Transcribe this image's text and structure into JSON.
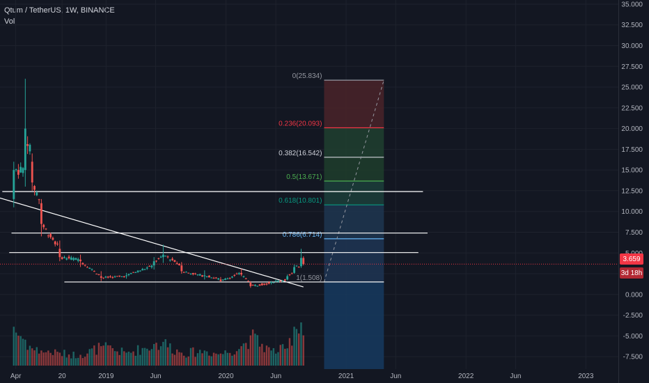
{
  "legend": {
    "symbol": "Qtum / TetherUS, 1W, BINANCE",
    "volume_label": "Vol"
  },
  "price_tag": {
    "current": "3.659",
    "countdown": "3d 18h"
  },
  "colors": {
    "background": "#131722",
    "up": "#26a69a",
    "down": "#ef5350",
    "text": "#d1d4dc",
    "axis_text": "#b2b5be",
    "grid": "#1e222d",
    "trendline": "#ffffff",
    "current_price_line": "#f23645"
  },
  "chart_data": {
    "type": "candlestick",
    "title": "Qtum / TetherUS, 1W, BINANCE",
    "interval": "1W",
    "exchange": "BINANCE",
    "y_axis": {
      "position": "right",
      "range": [
        -9.0,
        35.5
      ],
      "ticks": [
        "35.000",
        "32.500",
        "30.000",
        "27.500",
        "25.000",
        "22.500",
        "20.000",
        "17.500",
        "15.000",
        "12.500",
        "10.000",
        "7.500",
        "5.000",
        "2.500",
        "0.000",
        "-2.500",
        "-5.000",
        "-7.500"
      ]
    },
    "x_axis": {
      "start": "2018-02-12",
      "end": "2023-04-10",
      "ticks": [
        {
          "label": "Apr",
          "date": "2018-04-01"
        },
        {
          "label": "20",
          "date": "2018-08-20"
        },
        {
          "label": "2019",
          "date": "2019-01-01"
        },
        {
          "label": "Jun",
          "date": "2019-06-01"
        },
        {
          "label": "2020",
          "date": "2020-01-01"
        },
        {
          "label": "Jun",
          "date": "2020-06-01"
        },
        {
          "label": "2021",
          "date": "2021-01-01"
        },
        {
          "label": "Jun",
          "date": "2021-06-01"
        },
        {
          "label": "2022",
          "date": "2022-01-01"
        },
        {
          "label": "Jun",
          "date": "2022-06-01"
        },
        {
          "label": "2023",
          "date": "2023-01-01"
        }
      ]
    },
    "grid": true,
    "current_price": 3.659,
    "anchors": [
      {
        "date": "2018-03-26",
        "open": 11.5,
        "high": 16.0,
        "low": 10.5,
        "close": 15.0,
        "volume": 900
      },
      {
        "date": "2018-04-30",
        "open": 15.0,
        "high": 26.0,
        "low": 13.0,
        "close": 20.0,
        "volume": 600
      },
      {
        "date": "2018-05-21",
        "open": 16.0,
        "high": 17.0,
        "low": 12.5,
        "close": 13.5,
        "volume": 400
      },
      {
        "date": "2018-06-18",
        "open": 11.0,
        "high": 11.5,
        "low": 7.0,
        "close": 8.5,
        "volume": 350
      },
      {
        "date": "2018-08-13",
        "open": 5.5,
        "high": 6.5,
        "low": 4.0,
        "close": 4.5,
        "volume": 300
      },
      {
        "date": "2018-10-15",
        "open": 4.2,
        "high": 4.8,
        "low": 3.3,
        "close": 4.0,
        "volume": 250
      },
      {
        "date": "2018-12-17",
        "open": 2.2,
        "high": 2.8,
        "low": 1.6,
        "close": 2.0,
        "volume": 450
      },
      {
        "date": "2019-03-04",
        "open": 2.2,
        "high": 2.6,
        "low": 1.9,
        "close": 2.3,
        "volume": 300
      },
      {
        "date": "2019-05-27",
        "open": 3.5,
        "high": 4.5,
        "low": 3.0,
        "close": 4.0,
        "volume": 500
      },
      {
        "date": "2019-06-24",
        "open": 4.5,
        "high": 6.0,
        "low": 3.8,
        "close": 4.8,
        "volume": 550
      },
      {
        "date": "2019-08-19",
        "open": 3.5,
        "high": 3.9,
        "low": 2.5,
        "close": 2.8,
        "volume": 300
      },
      {
        "date": "2019-10-28",
        "open": 2.2,
        "high": 2.9,
        "low": 1.8,
        "close": 2.3,
        "volume": 350
      },
      {
        "date": "2019-12-16",
        "open": 1.8,
        "high": 2.1,
        "low": 1.5,
        "close": 1.6,
        "volume": 280
      },
      {
        "date": "2020-02-17",
        "open": 2.6,
        "high": 3.1,
        "low": 2.2,
        "close": 2.4,
        "volume": 450
      },
      {
        "date": "2020-03-16",
        "open": 1.4,
        "high": 1.6,
        "low": 0.8,
        "close": 1.0,
        "volume": 700
      },
      {
        "date": "2020-05-18",
        "open": 1.4,
        "high": 1.6,
        "low": 1.2,
        "close": 1.5,
        "volume": 350
      },
      {
        "date": "2020-07-06",
        "open": 1.8,
        "high": 2.4,
        "low": 1.7,
        "close": 2.2,
        "volume": 400
      },
      {
        "date": "2020-07-27",
        "open": 2.6,
        "high": 3.6,
        "low": 2.5,
        "close": 3.3,
        "volume": 900
      },
      {
        "date": "2020-08-17",
        "open": 3.4,
        "high": 5.5,
        "low": 3.2,
        "close": 4.4,
        "volume": 1000
      },
      {
        "date": "2020-08-24",
        "open": 4.4,
        "high": 4.6,
        "low": 3.5,
        "close": 3.659,
        "volume": 700
      }
    ],
    "horizontal_lines": [
      {
        "value": 12.4,
        "from": "2018-02-19",
        "to": "2021-08-23"
      },
      {
        "value": 7.4,
        "from": "2018-03-19",
        "to": "2021-09-06"
      },
      {
        "value": 5.05,
        "from": "2018-03-12",
        "to": "2021-08-09"
      },
      {
        "value": 1.5,
        "from": "2018-08-27",
        "to": "2021-04-26"
      }
    ],
    "trendline": {
      "from": {
        "date": "2018-02-05",
        "value": 11.7
      },
      "to": {
        "date": "2020-08-24",
        "value": 0.9
      }
    },
    "fib_retracement": {
      "from": {
        "date": "2020-10-26",
        "value": 1.508
      },
      "to": {
        "date": "2021-04-26",
        "value": 25.834
      },
      "levels": [
        {
          "label": "0(25.834)",
          "value": 25.834,
          "color": "#9598a1",
          "fill": "#4a2329"
        },
        {
          "label": "0.236(20.093)",
          "value": 20.093,
          "color": "#f23645",
          "fill": "#20402f"
        },
        {
          "label": "0.382(16.542)",
          "value": 16.542,
          "color": "#d1d4dc",
          "fill": "#1f3d2b"
        },
        {
          "label": "0.5(13.671)",
          "value": 13.671,
          "color": "#4caf50",
          "fill": "#1c3e3a"
        },
        {
          "label": "0.618(10.801)",
          "value": 10.801,
          "color": "#089981",
          "fill": "#1e3650"
        },
        {
          "label": "0.786(6.714)",
          "value": 6.714,
          "color": "#64b5f6",
          "fill": "#1f3554"
        },
        {
          "label": "1(1.508)",
          "value": 1.508,
          "color": "#9598a1",
          "fill": "#163a5f"
        }
      ]
    }
  }
}
